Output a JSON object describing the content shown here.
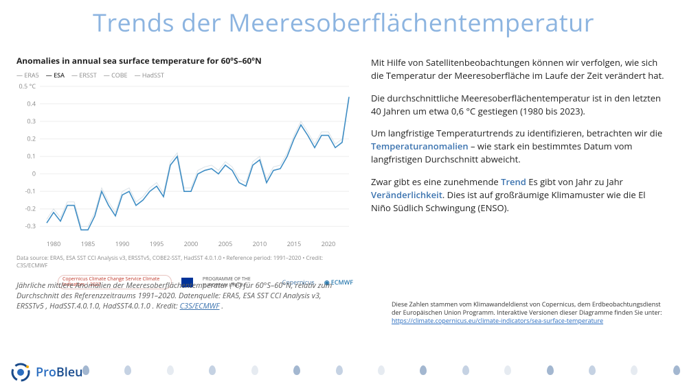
{
  "title": "Trends der Meeresoberflächentemperatur",
  "chart": {
    "type": "line",
    "title": "Anomalies in annual sea surface temperature for 60ºS–60ºN",
    "legend": [
      "ERA5",
      "ESA",
      "ERSST",
      "COBE",
      "HadSST"
    ],
    "legend_active_index": 1,
    "x_years": [
      1980,
      1985,
      1990,
      1995,
      2000,
      2005,
      2010,
      2015,
      2020
    ],
    "xlim": [
      1978,
      2023
    ],
    "ylim": [
      -0.35,
      0.5
    ],
    "ylabel_suffix": "°C",
    "yticks": [
      -0.3,
      -0.2,
      -0.1,
      0,
      0.1,
      0.2,
      0.3,
      0.4,
      0.5
    ],
    "grid_color": "#eeeeee",
    "axis_text_color": "#888888",
    "background_color": "#ffffff",
    "series": [
      {
        "name": "ESA",
        "color": "#3e8dc4",
        "width": 1.6,
        "opacity": 1.0,
        "data": [
          [
            1979,
            -0.28
          ],
          [
            1980,
            -0.22
          ],
          [
            1981,
            -0.27
          ],
          [
            1982,
            -0.18
          ],
          [
            1983,
            -0.18
          ],
          [
            1984,
            -0.32
          ],
          [
            1985,
            -0.32
          ],
          [
            1986,
            -0.24
          ],
          [
            1987,
            -0.1
          ],
          [
            1988,
            -0.18
          ],
          [
            1989,
            -0.24
          ],
          [
            1990,
            -0.12
          ],
          [
            1991,
            -0.1
          ],
          [
            1992,
            -0.18
          ],
          [
            1993,
            -0.15
          ],
          [
            1994,
            -0.1
          ],
          [
            1995,
            -0.07
          ],
          [
            1996,
            -0.13
          ],
          [
            1997,
            0.05
          ],
          [
            1998,
            0.1
          ],
          [
            1999,
            -0.1
          ],
          [
            2000,
            -0.1
          ],
          [
            2001,
            0.0
          ],
          [
            2002,
            0.02
          ],
          [
            2003,
            0.03
          ],
          [
            2004,
            0.0
          ],
          [
            2005,
            0.05
          ],
          [
            2006,
            0.02
          ],
          [
            2007,
            -0.05
          ],
          [
            2008,
            -0.07
          ],
          [
            2009,
            0.05
          ],
          [
            2010,
            0.08
          ],
          [
            2011,
            -0.05
          ],
          [
            2012,
            0.02
          ],
          [
            2013,
            0.03
          ],
          [
            2014,
            0.1
          ],
          [
            2015,
            0.2
          ],
          [
            2016,
            0.28
          ],
          [
            2017,
            0.22
          ],
          [
            2018,
            0.15
          ],
          [
            2019,
            0.22
          ],
          [
            2020,
            0.22
          ],
          [
            2021,
            0.15
          ],
          [
            2022,
            0.18
          ],
          [
            2023,
            0.44
          ]
        ]
      },
      {
        "name": "ERA5",
        "color": "#b8c5d0",
        "width": 1.0,
        "opacity": 0.5,
        "data": [
          [
            1979,
            -0.26
          ],
          [
            1980,
            -0.2
          ],
          [
            1981,
            -0.25
          ],
          [
            1982,
            -0.16
          ],
          [
            1983,
            -0.16
          ],
          [
            1984,
            -0.3
          ],
          [
            1985,
            -0.3
          ],
          [
            1986,
            -0.22
          ],
          [
            1987,
            -0.08
          ],
          [
            1988,
            -0.16
          ],
          [
            1989,
            -0.22
          ],
          [
            1990,
            -0.1
          ],
          [
            1991,
            -0.08
          ],
          [
            1992,
            -0.16
          ],
          [
            1993,
            -0.13
          ],
          [
            1994,
            -0.08
          ],
          [
            1995,
            -0.05
          ],
          [
            1996,
            -0.11
          ],
          [
            1997,
            0.07
          ],
          [
            1998,
            0.12
          ],
          [
            1999,
            -0.08
          ],
          [
            2000,
            -0.08
          ],
          [
            2001,
            0.02
          ],
          [
            2002,
            0.04
          ],
          [
            2003,
            0.05
          ],
          [
            2004,
            0.02
          ],
          [
            2005,
            0.07
          ],
          [
            2006,
            0.04
          ],
          [
            2007,
            -0.03
          ],
          [
            2008,
            -0.05
          ],
          [
            2009,
            0.07
          ],
          [
            2010,
            0.1
          ],
          [
            2011,
            -0.03
          ],
          [
            2012,
            0.04
          ],
          [
            2013,
            0.05
          ],
          [
            2014,
            0.12
          ],
          [
            2015,
            0.22
          ],
          [
            2016,
            0.3
          ],
          [
            2017,
            0.24
          ],
          [
            2018,
            0.17
          ],
          [
            2019,
            0.24
          ],
          [
            2020,
            0.24
          ],
          [
            2021,
            0.17
          ],
          [
            2022,
            0.2
          ],
          [
            2023,
            0.42
          ]
        ]
      }
    ],
    "data_source": "Data source: ERA5, ESA SST CCI Analysis v3, ERSSTv5, COBE2-SST, HadSST 4.0.1.0 • Reference period: 1991–2020 • Credit: C3S/ECMWF",
    "logos": {
      "c3s": "Copernicus Climate Change Service\nClimate Indicators | 2023",
      "eu": "PROGRAMME OF THE EUROPEAN UNION",
      "copernicus": "Copernicus",
      "ecmwf": "ECMWF"
    }
  },
  "caption": {
    "text_before": "Jährliche mittlere Anomalien der Meeresoberflächentemperatur (°C) für 60°S–60°N, relativ zum Durchschnitt des Referenzzeitraums 1991–2020. Datenquelle: ERA5, ESA SST CCI Analysis v3, ERSSTv5 , HadSST.4.0.1.0, HadSST4.0.1.0 . Kredit: ",
    "link_text": "C3S/ECMWF",
    "text_after": "."
  },
  "body": {
    "p1": "Mit Hilfe von Satellitenbeobachtungen können wir verfolgen, wie sich die Temperatur der Meeresoberfläche im Laufe der Zeit verändert hat.",
    "p2": "Die durchschnittliche Meeresoberflächentemperatur ist in den letzten 40 Jahren um etwa 0,6 °C gestiegen (1980 bis 2023).",
    "p3_a": "Um langfristige Temperaturtrends zu identifizieren, betrachten wir die ",
    "p3_hl": "Temperaturanomalien",
    "p3_b": " – wie stark ein bestimmtes Datum vom langfristigen Durchschnitt abweicht.",
    "p4_a": "Zwar gibt es eine zunehmende ",
    "p4_hl1": "Trend",
    "p4_b": " Es gibt von Jahr zu Jahr ",
    "p4_hl2": "Veränderlichkeit",
    "p4_c": ". Dies ist auf großräumige Klimamuster wie die El Niño Südlich Schwingung (ENSO)."
  },
  "footnote": {
    "text": "Diese Zahlen stammen vom Klimawandeldienst von Copernicus, dem Erdbeobachtungsdienst der Europäischen Union Programm. Interaktive Versionen dieser Diagramme finden Sie unter: ",
    "link": "https://climate.copernicus.eu/climate-indicators/sea-surface-temperature"
  },
  "footer": {
    "brand_pro": "Pro",
    "brand_bleu": "Bleu",
    "drop_colors": [
      "#194a8a",
      "#6e8fb8",
      "#c0cddd",
      "#6e8fb8",
      "#c0cddd",
      "#194a8a",
      "#6e8fb8",
      "#c0cddd",
      "#194a8a",
      "#6e8fb8",
      "#c0cddd",
      "#194a8a",
      "#6e8fb8",
      "#c0cddd",
      "#194a8a"
    ]
  }
}
